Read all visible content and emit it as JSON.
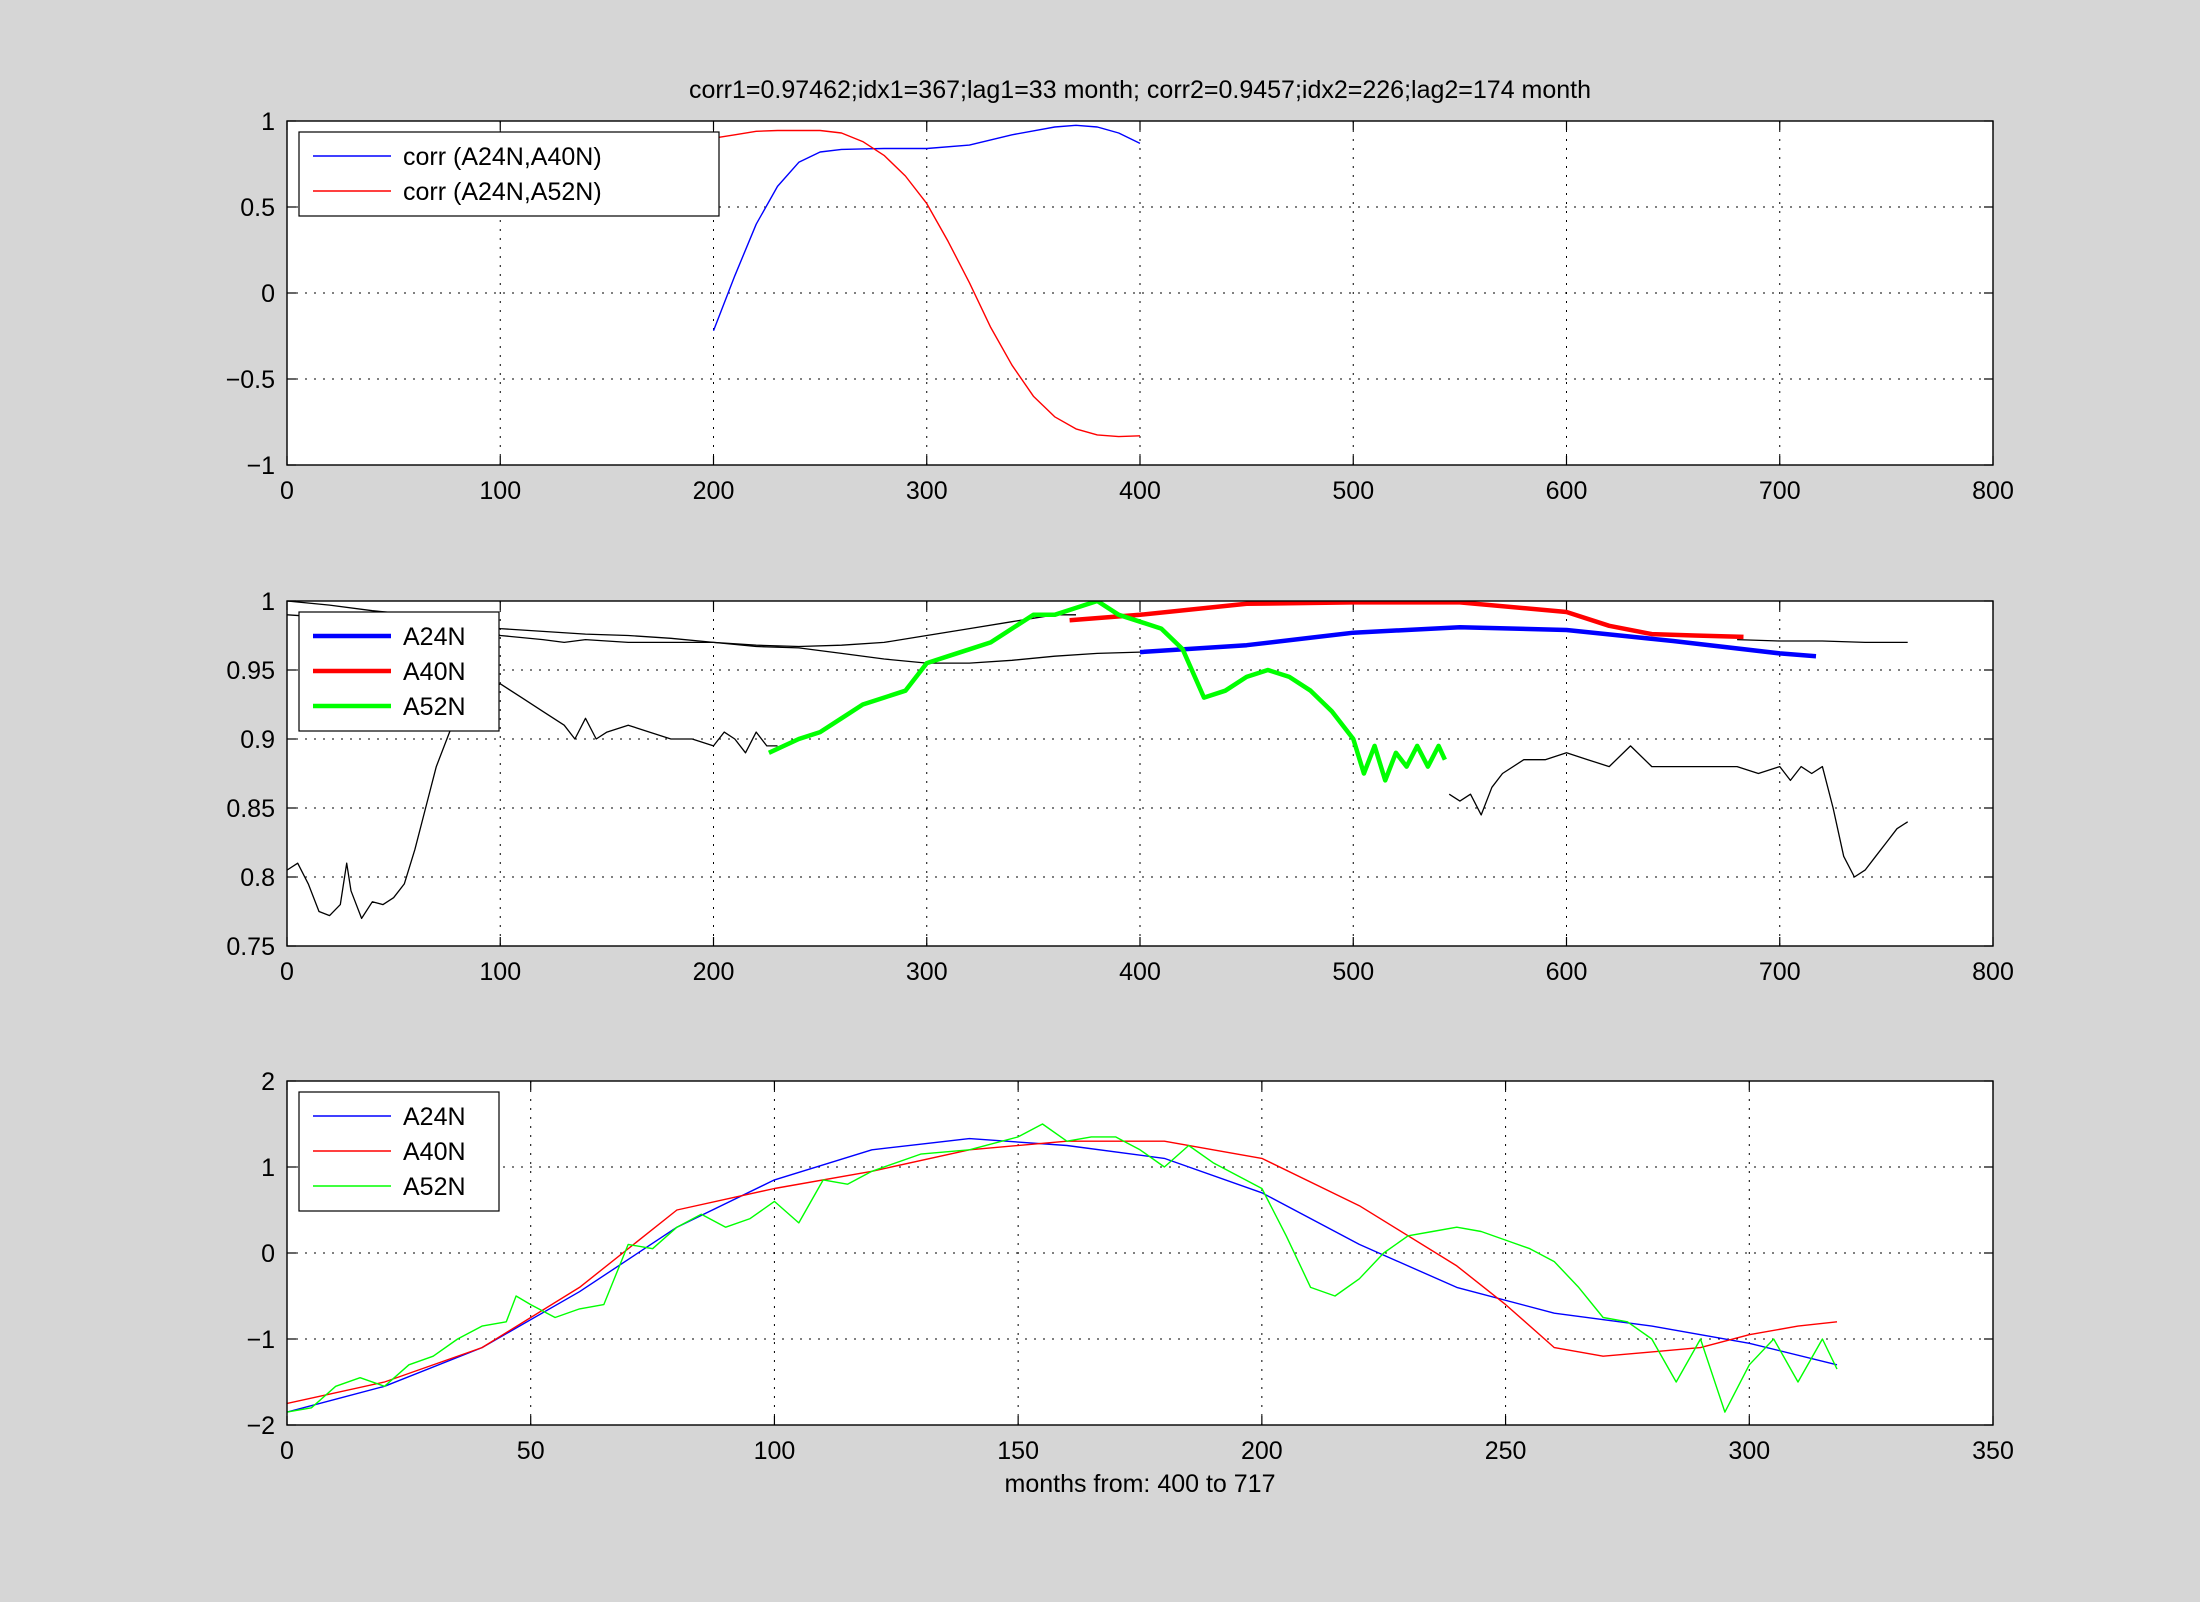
{
  "figure": {
    "title": "corr1=0.97462;idx1=367;lag1=33 month;   corr2=0.9457;idx2=226;lag2=174 month",
    "xlabel_bottom": "months from: 400 to 717"
  },
  "colors": {
    "blue": "#0000ff",
    "red": "#ff0000",
    "green": "#00ff00",
    "black": "#000000",
    "background": "#d6d6d6"
  },
  "chart_data": [
    {
      "type": "line",
      "xlim": [
        0,
        800
      ],
      "ylim": [
        -1,
        1
      ],
      "xticks": [
        "0",
        "100",
        "200",
        "300",
        "400",
        "500",
        "600",
        "700",
        "800"
      ],
      "yticks": [
        "−1",
        "−0.5",
        "0",
        "0.5",
        "1"
      ],
      "grid": true,
      "legend_placement": "top-left",
      "series": [
        {
          "name": "corr (A24N,A40N)",
          "color": "#0000ff",
          "width": 1.4,
          "x": [
            200,
            210,
            220,
            230,
            240,
            250,
            260,
            270,
            280,
            300,
            320,
            340,
            360,
            370,
            380,
            390,
            400
          ],
          "y": [
            -0.22,
            0.1,
            0.4,
            0.62,
            0.76,
            0.82,
            0.835,
            0.838,
            0.84,
            0.84,
            0.86,
            0.92,
            0.965,
            0.975,
            0.965,
            0.93,
            0.87
          ]
        },
        {
          "name": "corr (A24N,A52N)",
          "color": "#ff0000",
          "width": 1.4,
          "x": [
            200,
            210,
            220,
            230,
            240,
            250,
            260,
            270,
            280,
            290,
            300,
            310,
            320,
            330,
            340,
            350,
            360,
            370,
            380,
            390,
            400
          ],
          "y": [
            0.9,
            0.92,
            0.94,
            0.945,
            0.945,
            0.945,
            0.93,
            0.88,
            0.8,
            0.68,
            0.52,
            0.3,
            0.06,
            -0.2,
            -0.42,
            -0.6,
            -0.72,
            -0.79,
            -0.825,
            -0.835,
            -0.83
          ]
        }
      ]
    },
    {
      "type": "line",
      "xlim": [
        0,
        800
      ],
      "ylim": [
        0.75,
        1
      ],
      "xticks": [
        "0",
        "100",
        "200",
        "300",
        "400",
        "500",
        "600",
        "700",
        "800"
      ],
      "yticks": [
        "0.75",
        "0.8",
        "0.85",
        "0.9",
        "0.95",
        "1"
      ],
      "grid": true,
      "legend_placement": "top-left",
      "series": [
        {
          "name": "",
          "color": "#000000",
          "width": 1.3,
          "x": [
            0,
            5,
            10,
            15,
            20,
            25,
            28,
            30,
            35,
            40,
            45,
            50,
            55,
            60,
            65,
            70,
            75,
            80,
            85,
            90,
            95,
            100,
            110,
            120,
            130,
            135,
            140,
            145,
            150,
            160,
            170,
            180,
            190,
            200,
            205,
            210,
            215,
            220,
            225,
            230
          ],
          "y": [
            0.805,
            0.81,
            0.795,
            0.775,
            0.772,
            0.78,
            0.81,
            0.79,
            0.77,
            0.782,
            0.78,
            0.785,
            0.795,
            0.82,
            0.85,
            0.88,
            0.9,
            0.92,
            0.935,
            0.94,
            0.935,
            0.94,
            0.93,
            0.92,
            0.91,
            0.9,
            0.915,
            0.9,
            0.905,
            0.91,
            0.905,
            0.9,
            0.9,
            0.895,
            0.905,
            0.9,
            0.89,
            0.905,
            0.895,
            0.895
          ]
        },
        {
          "name": "",
          "color": "#000000",
          "width": 1.3,
          "x": [
            0,
            20,
            40,
            60,
            80,
            100,
            120,
            140,
            160,
            180,
            200,
            220,
            240,
            260,
            280,
            300,
            320,
            340,
            360,
            380,
            400
          ],
          "y": [
            1.0,
            0.997,
            0.993,
            0.99,
            0.985,
            0.98,
            0.978,
            0.976,
            0.975,
            0.973,
            0.97,
            0.967,
            0.966,
            0.962,
            0.958,
            0.955,
            0.955,
            0.957,
            0.96,
            0.962,
            0.963
          ]
        },
        {
          "name": "",
          "color": "#000000",
          "width": 1.3,
          "x": [
            0,
            30,
            60,
            90,
            100,
            120,
            130,
            140,
            160,
            180,
            200,
            220,
            240,
            260,
            280,
            300,
            320,
            340,
            360,
            370
          ],
          "y": [
            0.99,
            0.987,
            0.985,
            0.982,
            0.975,
            0.972,
            0.97,
            0.972,
            0.97,
            0.97,
            0.97,
            0.968,
            0.967,
            0.968,
            0.97,
            0.975,
            0.98,
            0.985,
            0.99,
            0.99
          ]
        },
        {
          "name": "",
          "color": "#000000",
          "width": 1.3,
          "x": [
            545,
            550,
            555,
            560,
            565,
            570,
            580,
            590,
            600,
            610,
            620,
            630,
            640,
            650,
            660,
            670,
            680,
            690,
            700,
            705,
            710,
            715,
            720,
            725,
            730,
            735,
            740,
            745,
            750,
            755,
            760
          ],
          "y": [
            0.86,
            0.855,
            0.86,
            0.845,
            0.865,
            0.875,
            0.885,
            0.885,
            0.89,
            0.885,
            0.88,
            0.895,
            0.88,
            0.88,
            0.88,
            0.88,
            0.88,
            0.875,
            0.88,
            0.87,
            0.88,
            0.875,
            0.88,
            0.85,
            0.815,
            0.8,
            0.805,
            0.815,
            0.825,
            0.835,
            0.84
          ]
        },
        {
          "name": "",
          "color": "#000000",
          "width": 1.3,
          "x": [
            680,
            700,
            720,
            740,
            760
          ],
          "y": [
            0.972,
            0.971,
            0.971,
            0.97,
            0.97
          ]
        },
        {
          "name": "A24N",
          "color": "#0000ff",
          "width": 4.5,
          "x": [
            400,
            450,
            500,
            550,
            600,
            650,
            700,
            717
          ],
          "y": [
            0.963,
            0.968,
            0.977,
            0.981,
            0.979,
            0.971,
            0.962,
            0.96
          ]
        },
        {
          "name": "A40N",
          "color": "#ff0000",
          "width": 4.5,
          "x": [
            367,
            400,
            450,
            500,
            550,
            600,
            620,
            640,
            660,
            683
          ],
          "y": [
            0.986,
            0.99,
            0.998,
            0.999,
            0.999,
            0.992,
            0.982,
            0.976,
            0.975,
            0.974
          ]
        },
        {
          "name": "A52N",
          "color": "#00ff00",
          "width": 4.5,
          "x": [
            226,
            240,
            250,
            260,
            270,
            280,
            290,
            300,
            310,
            320,
            330,
            340,
            350,
            360,
            370,
            380,
            390,
            400,
            410,
            420,
            430,
            440,
            450,
            460,
            470,
            480,
            490,
            500,
            505,
            510,
            515,
            520,
            525,
            530,
            535,
            540,
            543
          ],
          "y": [
            0.89,
            0.9,
            0.905,
            0.915,
            0.925,
            0.93,
            0.935,
            0.955,
            0.96,
            0.965,
            0.97,
            0.98,
            0.99,
            0.99,
            0.995,
            1.0,
            0.99,
            0.985,
            0.98,
            0.965,
            0.93,
            0.935,
            0.945,
            0.95,
            0.945,
            0.935,
            0.92,
            0.9,
            0.875,
            0.895,
            0.87,
            0.89,
            0.88,
            0.895,
            0.88,
            0.895,
            0.885
          ]
        }
      ]
    },
    {
      "type": "line",
      "xlim": [
        0,
        350
      ],
      "ylim": [
        -2,
        2
      ],
      "xticks": [
        "0",
        "50",
        "100",
        "150",
        "200",
        "250",
        "300",
        "350"
      ],
      "yticks": [
        "−2",
        "−1",
        "0",
        "1",
        "2"
      ],
      "xlabel": "months from: 400 to 717",
      "grid": true,
      "legend_placement": "top-left",
      "series": [
        {
          "name": "A24N",
          "color": "#0000ff",
          "width": 1.4,
          "x": [
            0,
            20,
            40,
            60,
            80,
            100,
            120,
            140,
            160,
            180,
            200,
            220,
            240,
            260,
            280,
            300,
            318
          ],
          "y": [
            -1.85,
            -1.55,
            -1.1,
            -0.45,
            0.3,
            0.85,
            1.2,
            1.33,
            1.25,
            1.1,
            0.7,
            0.1,
            -0.4,
            -0.7,
            -0.85,
            -1.05,
            -1.3
          ]
        },
        {
          "name": "A40N",
          "color": "#ff0000",
          "width": 1.4,
          "x": [
            0,
            20,
            40,
            60,
            80,
            100,
            120,
            140,
            160,
            180,
            200,
            220,
            240,
            250,
            260,
            270,
            280,
            290,
            300,
            310,
            318
          ],
          "y": [
            -1.75,
            -1.5,
            -1.1,
            -0.4,
            0.5,
            0.75,
            0.95,
            1.2,
            1.3,
            1.3,
            1.1,
            0.55,
            -0.15,
            -0.6,
            -1.1,
            -1.2,
            -1.15,
            -1.1,
            -0.95,
            -0.85,
            -0.8
          ]
        },
        {
          "name": "A52N",
          "color": "#00ff00",
          "width": 1.4,
          "x": [
            0,
            5,
            10,
            15,
            20,
            25,
            30,
            35,
            40,
            45,
            47,
            50,
            55,
            60,
            65,
            70,
            75,
            80,
            85,
            90,
            95,
            100,
            105,
            110,
            115,
            120,
            130,
            140,
            150,
            155,
            160,
            165,
            170,
            175,
            180,
            185,
            190,
            195,
            200,
            205,
            210,
            215,
            220,
            225,
            230,
            235,
            240,
            245,
            250,
            255,
            260,
            265,
            270,
            275,
            280,
            285,
            290,
            295,
            300,
            305,
            310,
            315,
            318
          ],
          "y": [
            -1.85,
            -1.8,
            -1.55,
            -1.45,
            -1.55,
            -1.3,
            -1.2,
            -1.0,
            -0.85,
            -0.8,
            -0.5,
            -0.6,
            -0.75,
            -0.65,
            -0.6,
            0.1,
            0.05,
            0.3,
            0.45,
            0.3,
            0.4,
            0.6,
            0.35,
            0.85,
            0.8,
            0.95,
            1.15,
            1.2,
            1.35,
            1.5,
            1.3,
            1.35,
            1.35,
            1.2,
            1.0,
            1.25,
            1.05,
            0.9,
            0.75,
            0.2,
            -0.4,
            -0.5,
            -0.3,
            0.0,
            0.2,
            0.25,
            0.3,
            0.25,
            0.15,
            0.05,
            -0.1,
            -0.4,
            -0.75,
            -0.8,
            -1.0,
            -1.5,
            -1.0,
            -1.85,
            -1.3,
            -1.0,
            -1.5,
            -1.0,
            -1.35
          ]
        }
      ]
    }
  ]
}
